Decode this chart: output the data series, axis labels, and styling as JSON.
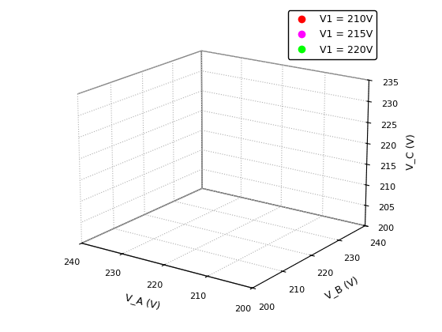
{
  "title": "",
  "xlabel": "V_A (V)",
  "ylabel": "V_B (V)",
  "zlabel": "V_C (V)",
  "va_range": [
    200,
    240
  ],
  "vb_range": [
    200,
    240
  ],
  "vc_range": [
    200,
    235
  ],
  "v1_values": [
    210,
    215,
    220
  ],
  "curve_colors": [
    "red",
    "magenta",
    "lime"
  ],
  "curve_labels": [
    "V1 = 210V",
    "V1 = 215V",
    "V1 = 220V"
  ],
  "surface_facecolor": "blue",
  "surface_edgecolor": "blue",
  "background_color": "white",
  "legend_loc": "upper right",
  "marker_size": 8,
  "line_width": 3,
  "va_ticks": [
    200,
    210,
    220,
    230,
    240
  ],
  "vb_ticks": [
    200,
    210,
    220,
    230,
    240
  ],
  "vc_ticks": [
    200,
    205,
    210,
    215,
    220,
    225,
    230,
    235
  ],
  "n_surface": 80,
  "n_curve": 500,
  "elev": 18,
  "azim": -55,
  "v1_min": 210,
  "v1_max": 220,
  "n_v1_sheets": 20
}
